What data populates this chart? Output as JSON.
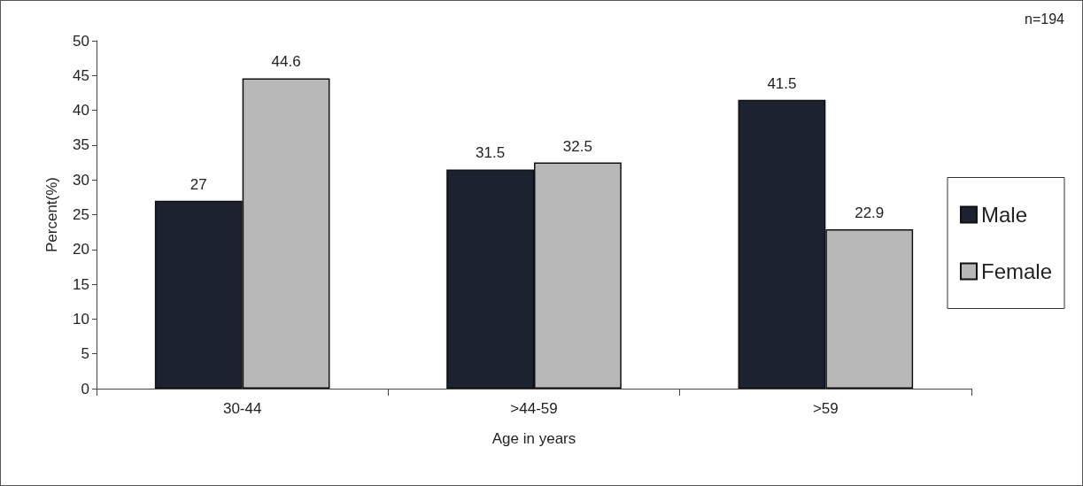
{
  "chart_data": {
    "type": "bar",
    "xlabel": "Age in years",
    "ylabel": "Percent(%)",
    "annotations": [
      "n=194"
    ],
    "categories": [
      "30-44",
      ">44-59",
      ">59"
    ],
    "series": [
      {
        "name": "Male",
        "color": "#1c2230",
        "values": [
          27,
          31.5,
          41.5
        ]
      },
      {
        "name": "Female",
        "color": "#b8b8b8",
        "values": [
          44.6,
          32.5,
          22.9
        ]
      }
    ],
    "ylim": [
      0,
      50
    ],
    "yticks": [
      0,
      5,
      10,
      15,
      20,
      25,
      30,
      35,
      40,
      45,
      50
    ],
    "grid": false,
    "legend": "right",
    "data_labels": true
  }
}
